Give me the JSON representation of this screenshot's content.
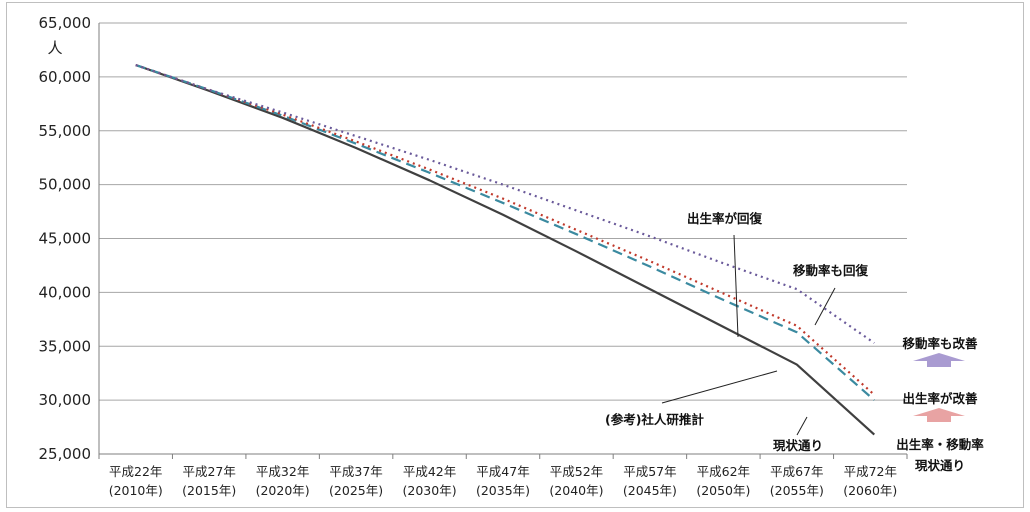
{
  "chart_data": {
    "type": "line",
    "ylabel": "人",
    "ylim": [
      25000,
      65000
    ],
    "yticks": [
      "65,000",
      "60,000",
      "55,000",
      "50,000",
      "45,000",
      "40,000",
      "35,000",
      "30,000",
      "25,000"
    ],
    "ytick_values": [
      65000,
      60000,
      55000,
      50000,
      45000,
      40000,
      35000,
      30000,
      25000
    ],
    "categories": [
      [
        "平成22年",
        "(2010年)"
      ],
      [
        "平成27年",
        "(2015年)"
      ],
      [
        "平成32年",
        "(2020年)"
      ],
      [
        "平成37年",
        "(2025年)"
      ],
      [
        "平成42年",
        "(2030年)"
      ],
      [
        "平成47年",
        "(2035年)"
      ],
      [
        "平成52年",
        "(2040年)"
      ],
      [
        "平成57年",
        "(2045年)"
      ],
      [
        "平成62年",
        "(2050年)"
      ],
      [
        "平成67年",
        "(2055年)"
      ],
      [
        "平成72年",
        "(2060年)"
      ]
    ],
    "grid": true,
    "series": [
      {
        "name": "現状通り",
        "color": "#404040",
        "style": "solid",
        "values": [
          61100,
          58700,
          56200,
          53400,
          50400,
          47200,
          43800,
          40300,
          36800,
          33300,
          26800
        ]
      },
      {
        "name": "(参考)社人研推計",
        "color": "#3b8aa0",
        "style": "dashed",
        "values": [
          61100,
          58800,
          56400,
          53800,
          51100,
          48300,
          45400,
          42400,
          39300,
          36300,
          30000
        ]
      },
      {
        "name": "出生率が回復",
        "color": "#c0392b",
        "style": "dotted",
        "values": [
          61100,
          58800,
          56500,
          54000,
          51400,
          48700,
          45800,
          42900,
          39900,
          36900,
          30500
        ]
      },
      {
        "name": "移動率も回復",
        "color": "#6a5a9a",
        "style": "dotted",
        "values": [
          61100,
          58800,
          56700,
          54500,
          52300,
          50000,
          47600,
          45200,
          42700,
          40300,
          35300
        ]
      }
    ],
    "annotations": [
      "出生率が回復",
      "移動率も回復",
      "(参考)社人研推計",
      "現状通り"
    ],
    "legend_side": {
      "upper_label": "移動率も改善",
      "middle_label": "出生率が改善",
      "lower_label_line1": "出生率・移動率",
      "lower_label_line2": "現状通り",
      "upper_arrow_color": "#a99bd1",
      "lower_arrow_color": "#e8a3a3"
    }
  }
}
